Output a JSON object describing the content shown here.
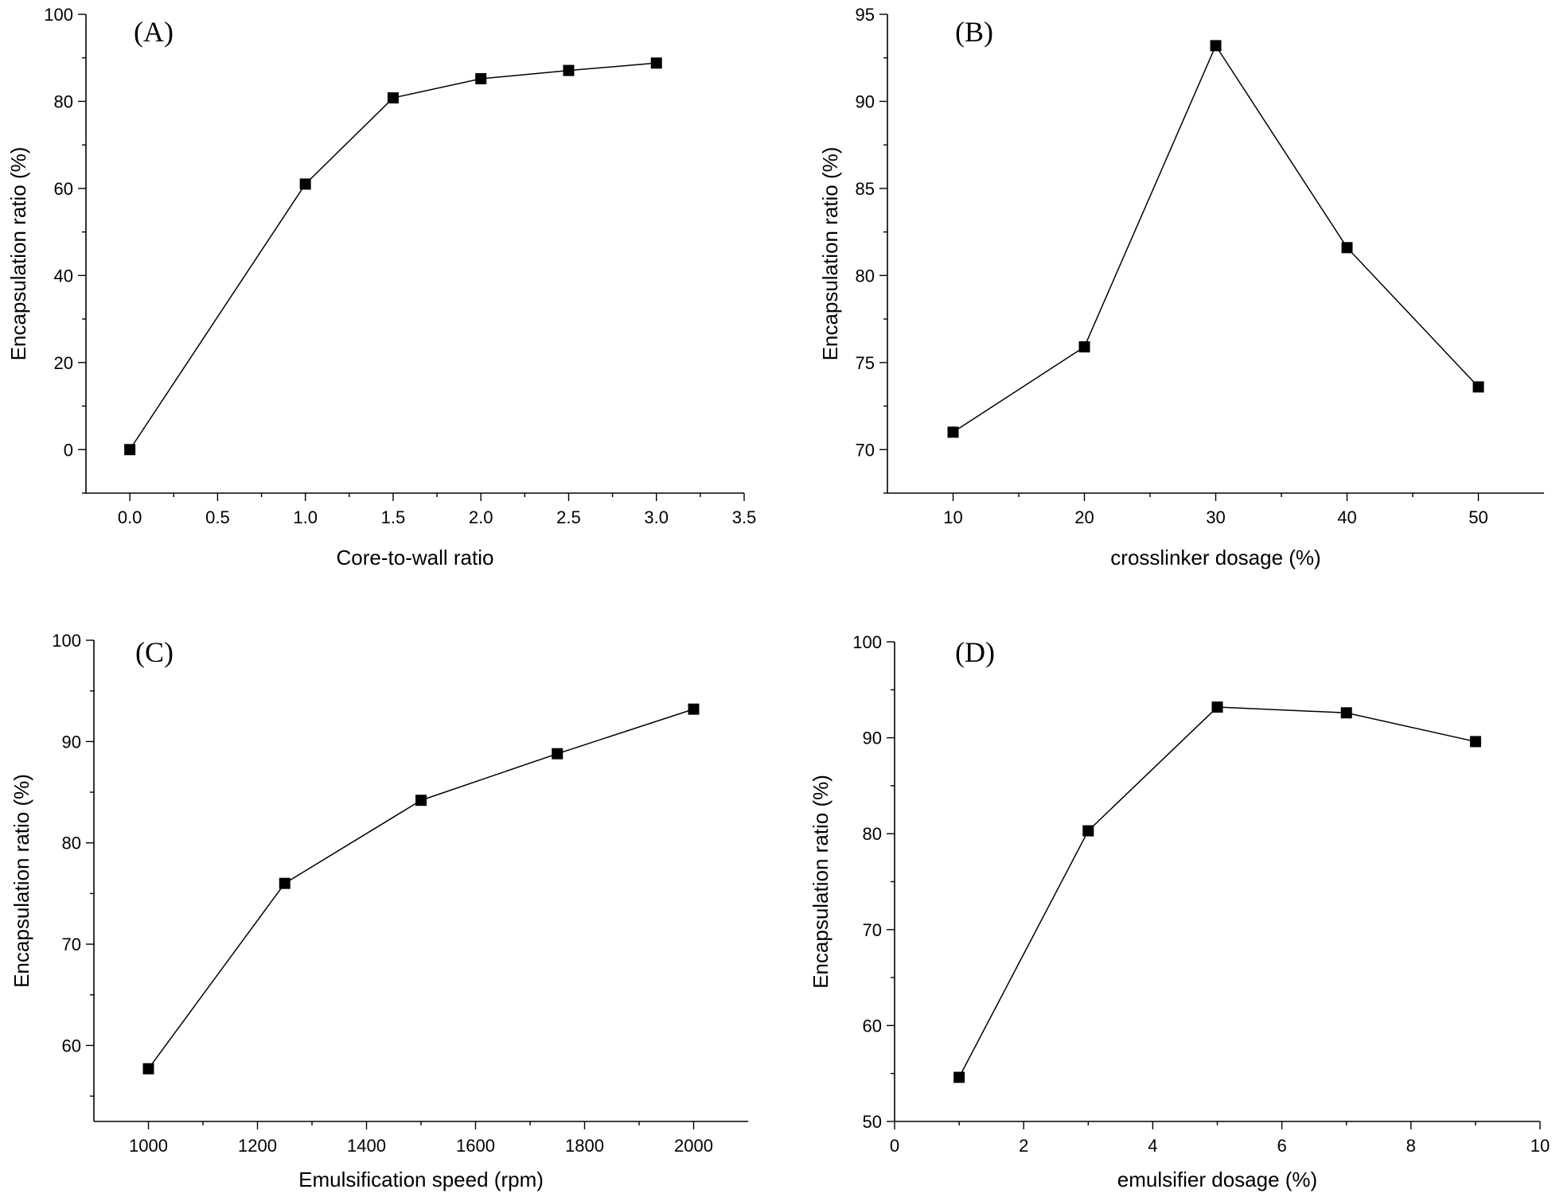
{
  "chart_data": [
    {
      "panel": "(A)",
      "type": "line",
      "x": [
        0.0,
        1.0,
        1.5,
        2.0,
        2.5,
        3.0
      ],
      "series": [
        {
          "name": "Encapsulation ratio",
          "values": [
            0,
            61,
            80.8,
            85.2,
            87.1,
            88.8
          ]
        }
      ],
      "xlabel": "Core-to-wall ratio",
      "ylabel": "Encapsulation ratio (%)",
      "xlim": [
        -0.25,
        3.5
      ],
      "ylim": [
        -10,
        100
      ],
      "xticks": [
        0.0,
        0.5,
        1.0,
        1.5,
        2.0,
        2.5,
        3.0,
        3.5
      ],
      "xtick_labels": [
        "0.0",
        "0.5",
        "1.0",
        "1.5",
        "2.0",
        "2.5",
        "3.0",
        "3.5"
      ],
      "yticks": [
        0,
        20,
        40,
        60,
        80,
        100
      ],
      "ytick_labels": [
        "0",
        "20",
        "40",
        "60",
        "80",
        "100"
      ],
      "grid": false
    },
    {
      "panel": "(B)",
      "type": "line",
      "x": [
        10,
        20,
        30,
        40,
        50
      ],
      "series": [
        {
          "name": "Encapsulation ratio",
          "values": [
            71,
            75.9,
            93.2,
            81.6,
            73.6
          ]
        }
      ],
      "xlabel": "crosslinker dosage (%)",
      "ylabel": "Encapsulation ratio (%)",
      "xlim": [
        5,
        55
      ],
      "ylim": [
        67.5,
        95
      ],
      "xticks": [
        10,
        20,
        30,
        40,
        50
      ],
      "xtick_labels": [
        "10",
        "20",
        "30",
        "40",
        "50"
      ],
      "yticks": [
        70,
        75,
        80,
        85,
        90,
        95
      ],
      "ytick_labels": [
        "70",
        "75",
        "80",
        "85",
        "90",
        "95"
      ],
      "grid": false
    },
    {
      "panel": "(C)",
      "type": "line",
      "x": [
        1000,
        1250,
        1500,
        1750,
        2000
      ],
      "series": [
        {
          "name": "Encapsulation ratio",
          "values": [
            57.7,
            76,
            84.2,
            88.8,
            93.2
          ]
        }
      ],
      "xlabel": "Emulsification speed (rpm)",
      "ylabel": "Encapsulation ratio (%)",
      "xlim": [
        900,
        2100
      ],
      "ylim": [
        52.5,
        100
      ],
      "xticks": [
        1000,
        1200,
        1400,
        1600,
        1800,
        2000
      ],
      "xtick_labels": [
        "1000",
        "1200",
        "1400",
        "1600",
        "1800",
        "2000"
      ],
      "yticks": [
        60,
        70,
        80,
        90,
        100
      ],
      "ytick_labels": [
        "60",
        "70",
        "80",
        "90",
        "100"
      ],
      "grid": false
    },
    {
      "panel": "(D)",
      "type": "line",
      "x": [
        1,
        3,
        5,
        7,
        9
      ],
      "series": [
        {
          "name": "Encapsulation ratio",
          "values": [
            54.6,
            80.3,
            93.2,
            92.6,
            89.6
          ]
        }
      ],
      "xlabel": "emulsifier dosage (%)",
      "ylabel": "Encapsulation ratio (%)",
      "xlim": [
        0,
        10
      ],
      "ylim": [
        50,
        100
      ],
      "xticks": [
        0,
        2,
        4,
        6,
        8,
        10
      ],
      "xtick_labels": [
        "0",
        "2",
        "4",
        "6",
        "8",
        "10"
      ],
      "yticks": [
        50,
        60,
        70,
        80,
        90,
        100
      ],
      "ytick_labels": [
        "50",
        "60",
        "70",
        "80",
        "90",
        "100"
      ],
      "grid": false
    }
  ]
}
